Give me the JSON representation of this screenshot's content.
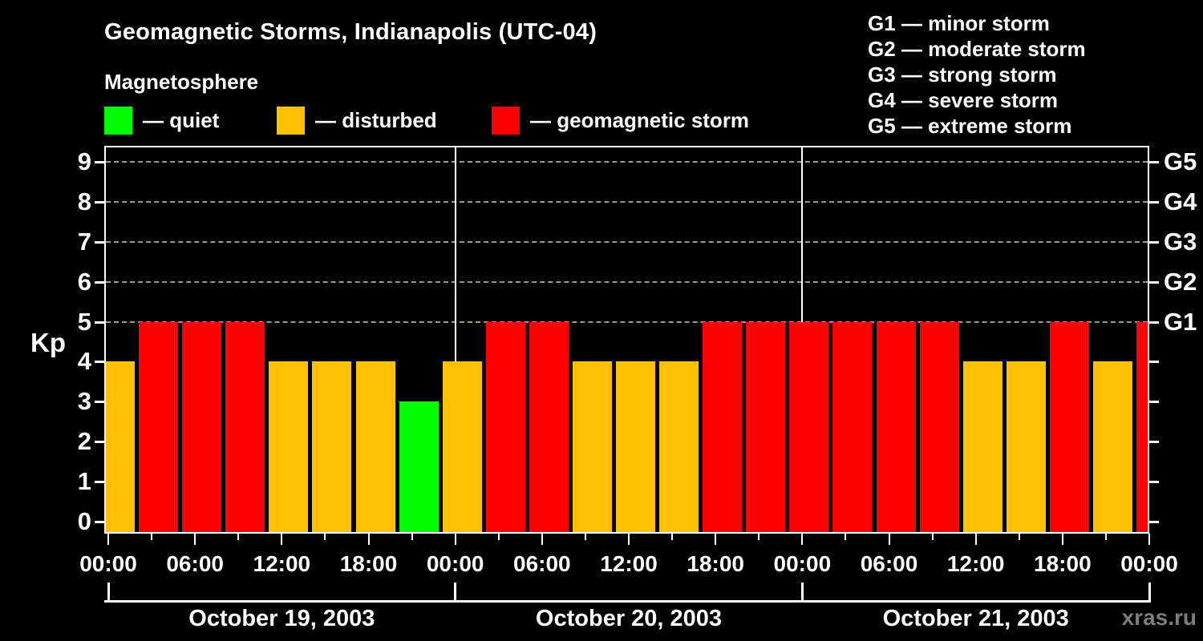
{
  "header": {
    "title": "Geomagnetic Storms, Indianapolis (UTC-04)",
    "subtitle": "Magnetosphere"
  },
  "legend": {
    "items": [
      {
        "name": "quiet",
        "swatch_color": "#00ff00",
        "label": "— quiet"
      },
      {
        "name": "disturbed",
        "swatch_color": "#ffc000",
        "label": "— disturbed"
      },
      {
        "name": "storm",
        "swatch_color": "#ff0000",
        "label": "— geomagnetic storm"
      }
    ]
  },
  "storm_scale": {
    "items": [
      "G1 — minor storm",
      "G2 — moderate storm",
      "G3 — strong storm",
      "G4 — severe storm",
      "G5 — extreme storm"
    ]
  },
  "watermark": "xras.ru",
  "chart_data": {
    "type": "bar",
    "title": "Geomagnetic Storms, Indianapolis (UTC-04)",
    "ylabel": "Kp",
    "y_ticks": [
      0,
      1,
      2,
      3,
      4,
      5,
      6,
      7,
      8,
      9
    ],
    "y_gridlines": [
      5,
      6,
      7,
      8,
      9
    ],
    "ylim": [
      -0.26,
      9.42
    ],
    "xlim_hours": [
      0,
      72
    ],
    "interval_hours": 3,
    "x_minor_tick_hours": 3,
    "x_major_tick_hours": 6,
    "x_time_labels": [
      "00:00",
      "06:00",
      "12:00",
      "18:00",
      "00:00",
      "06:00",
      "12:00",
      "18:00",
      "00:00",
      "06:00",
      "12:00",
      "18:00",
      "00:00"
    ],
    "right_axis_labels": [
      {
        "kp": 5,
        "label": "G1"
      },
      {
        "kp": 6,
        "label": "G2"
      },
      {
        "kp": 7,
        "label": "G3"
      },
      {
        "kp": 8,
        "label": "G4"
      },
      {
        "kp": 9,
        "label": "G5"
      }
    ],
    "days": [
      {
        "date": "October 19, 2003",
        "kp_values": [
          4,
          5,
          5,
          5,
          4,
          4,
          4,
          3
        ]
      },
      {
        "date": "October 20, 2003",
        "kp_values": [
          4,
          5,
          5,
          4,
          4,
          4,
          5,
          5
        ]
      },
      {
        "date": "October 21, 2003",
        "kp_values": [
          5,
          5,
          5,
          5,
          4,
          4,
          5,
          4
        ]
      }
    ],
    "next_day_first_interval_kp": 5,
    "color_rules": {
      "quiet_max_kp": 3,
      "storm_min_kp": 5
    },
    "colors": {
      "quiet": "#00ff00",
      "disturbed": "#ffc000",
      "storm": "#ff0000",
      "grid": "#999999",
      "axis": "#ffffff",
      "background": "#000000",
      "watermark": "#7d7d7d"
    },
    "legend_position": "top-left",
    "grid": true
  }
}
